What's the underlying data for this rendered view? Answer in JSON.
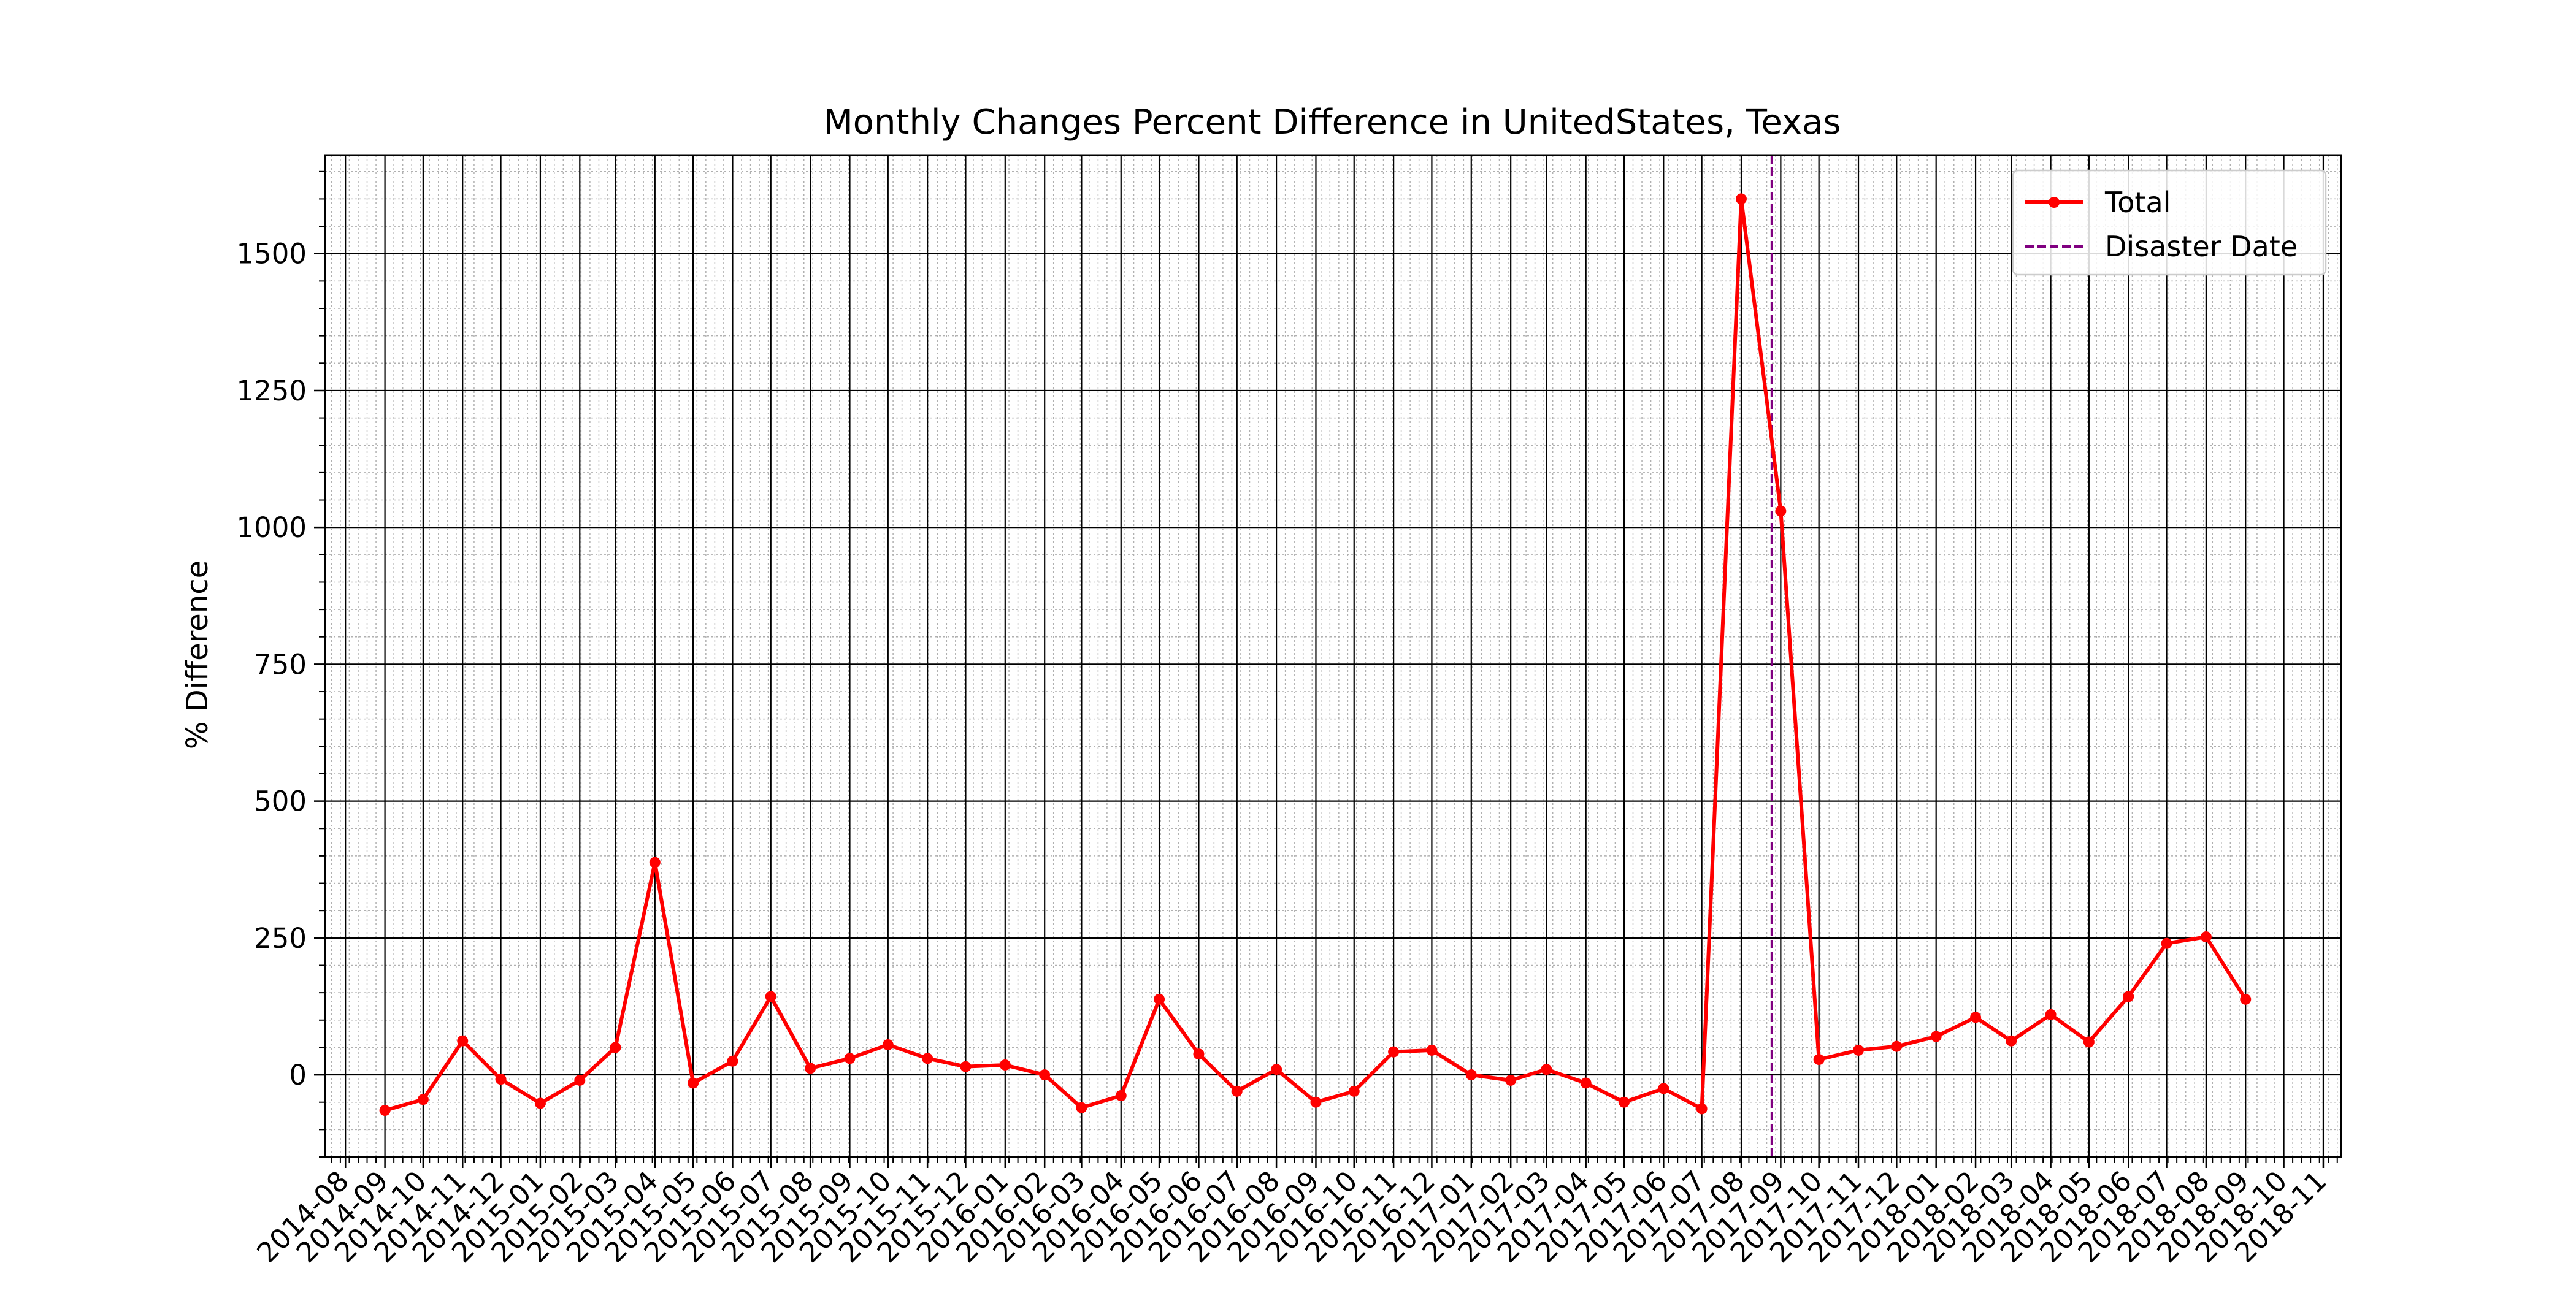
{
  "chart_data": {
    "type": "line",
    "title": "Monthly Changes Percent Difference in UnitedStates, Texas",
    "xlabel": "",
    "ylabel": "% Difference",
    "x_type": "date",
    "xlim": [
      "2014-07-16",
      "2018-11-15"
    ],
    "ylim": [
      -150,
      1680
    ],
    "yticks": [
      0,
      250,
      500,
      750,
      1000,
      1250,
      1500
    ],
    "yminor_step": 50,
    "xtick_labels": [
      "2014-08",
      "2014-09",
      "2014-10",
      "2014-11",
      "2014-12",
      "2015-01",
      "2015-02",
      "2015-03",
      "2015-04",
      "2015-05",
      "2015-06",
      "2015-07",
      "2015-08",
      "2015-09",
      "2015-10",
      "2015-11",
      "2015-12",
      "2016-01",
      "2016-02",
      "2016-03",
      "2016-04",
      "2016-05",
      "2016-06",
      "2016-07",
      "2016-08",
      "2016-09",
      "2016-10",
      "2016-11",
      "2016-12",
      "2017-01",
      "2017-02",
      "2017-03",
      "2017-04",
      "2017-05",
      "2017-06",
      "2017-07",
      "2017-08",
      "2017-09",
      "2017-10",
      "2017-11",
      "2017-12",
      "2018-01",
      "2018-02",
      "2018-03",
      "2018-04",
      "2018-05",
      "2018-06",
      "2018-07",
      "2018-08",
      "2018-09",
      "2018-10",
      "2018-11"
    ],
    "grid": true,
    "minor_grid": true,
    "legend_position": "top-right",
    "series": [
      {
        "name": "Total",
        "color": "#ff0000",
        "marker": "circle",
        "x": [
          "2014-09-01",
          "2014-10-01",
          "2014-11-01",
          "2014-12-01",
          "2015-01-01",
          "2015-02-01",
          "2015-03-01",
          "2015-04-01",
          "2015-05-01",
          "2015-06-01",
          "2015-07-01",
          "2015-08-01",
          "2015-09-01",
          "2015-10-01",
          "2015-11-01",
          "2015-12-01",
          "2016-01-01",
          "2016-02-01",
          "2016-03-01",
          "2016-04-01",
          "2016-05-01",
          "2016-06-01",
          "2016-07-01",
          "2016-08-01",
          "2016-09-01",
          "2016-10-01",
          "2016-11-01",
          "2016-12-01",
          "2017-01-01",
          "2017-02-01",
          "2017-03-01",
          "2017-04-01",
          "2017-05-01",
          "2017-06-01",
          "2017-07-01",
          "2017-08-01",
          "2017-09-01",
          "2017-10-01",
          "2017-11-01",
          "2017-12-01",
          "2018-01-01",
          "2018-02-01",
          "2018-03-01",
          "2018-04-01",
          "2018-05-01",
          "2018-06-01",
          "2018-07-01",
          "2018-08-01",
          "2018-09-01"
        ],
        "y": [
          -65,
          -45,
          62,
          -8,
          -52,
          -10,
          50,
          388,
          -15,
          25,
          143,
          12,
          30,
          55,
          30,
          15,
          18,
          0,
          -60,
          -38,
          138,
          38,
          -30,
          10,
          -50,
          -30,
          42,
          45,
          0,
          -10,
          10,
          -15,
          -50,
          -25,
          -62,
          1600,
          1030,
          28,
          45,
          52,
          70,
          105,
          62,
          110,
          60,
          143,
          240,
          252,
          138
        ]
      }
    ],
    "vlines": [
      {
        "name": "Disaster Date",
        "x": "2017-08-25",
        "color": "#800080",
        "style": "dashed"
      }
    ]
  }
}
